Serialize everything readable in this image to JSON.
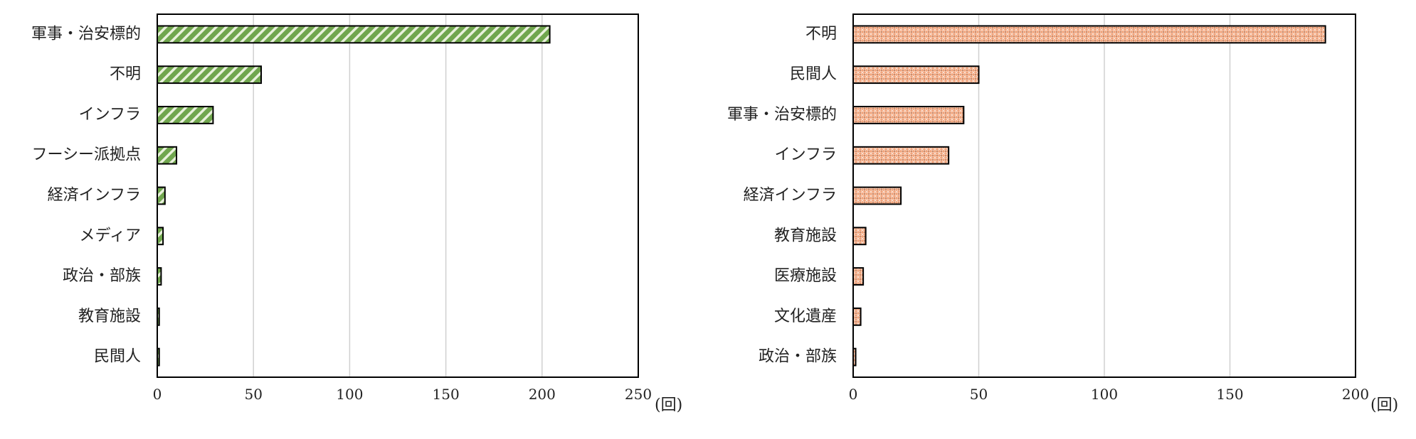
{
  "chart_data": [
    {
      "type": "bar",
      "orientation": "horizontal",
      "categories": [
        "軍事・治安標的",
        "不明",
        "インフラ",
        "フーシー派拠点",
        "経済インフラ",
        "メディア",
        "政治・部族",
        "教育施設",
        "民間人"
      ],
      "values": [
        204,
        54,
        29,
        10,
        4,
        3,
        2,
        1,
        1
      ],
      "xlim": [
        0,
        250
      ],
      "xticks": [
        "0",
        "50",
        "100",
        "150",
        "200",
        "250"
      ],
      "unit": "(回)",
      "grid": true,
      "fill_pattern": "diagonal-stripes",
      "color": "#70a64e"
    },
    {
      "type": "bar",
      "orientation": "horizontal",
      "categories": [
        "不明",
        "民間人",
        "軍事・治安標的",
        "インフラ",
        "経済インフラ",
        "教育施設",
        "医療施設",
        "文化遺産",
        "政治・部族"
      ],
      "values": [
        188,
        50,
        44,
        38,
        19,
        5,
        4,
        3,
        1
      ],
      "xlim": [
        0,
        200
      ],
      "xticks": [
        "0",
        "50",
        "100",
        "150",
        "200"
      ],
      "unit": "(回)",
      "grid": true,
      "fill_pattern": "crosshatch-dots",
      "color": "#f0a27a"
    }
  ]
}
